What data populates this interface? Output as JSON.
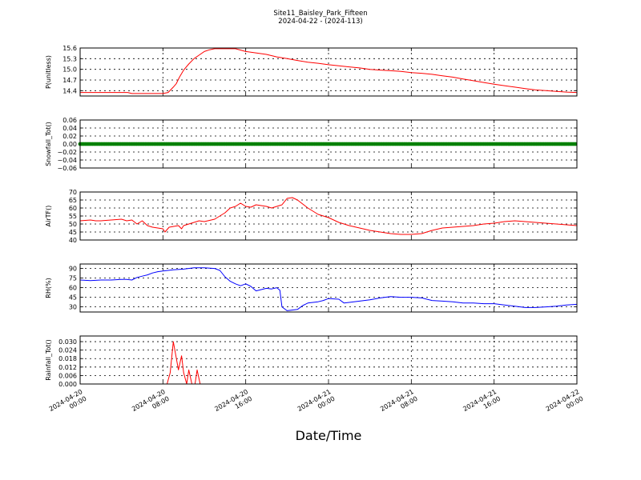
{
  "figure": {
    "title": "Site11_Baisley_Park_Fifteen",
    "subtitle": "2024-04-22 - (2024-113)",
    "xlabel": "Date/Time",
    "xtick_labels": [
      [
        "2024-04-20",
        "00:00"
      ],
      [
        "2024-04-20",
        "08:00"
      ],
      [
        "2024-04-20",
        "16:00"
      ],
      [
        "2024-04-21",
        "00:00"
      ],
      [
        "2024-04-21",
        "08:00"
      ],
      [
        "2024-04-21",
        "16:00"
      ],
      [
        "2024-04-22",
        "00:00"
      ]
    ]
  },
  "chart_data": [
    {
      "type": "line",
      "ylabel": "P(unitless)",
      "color": "#ff0000",
      "ylim": [
        14.25,
        15.6
      ],
      "yticks": [
        14.4,
        14.7,
        15.0,
        15.3,
        15.6
      ],
      "ytick_labels": [
        "14.4",
        "14.7",
        "15.0",
        "15.3",
        "15.6"
      ],
      "xlim_hours": [
        0,
        48
      ],
      "x_hours": [
        0,
        2,
        4,
        4.6,
        5,
        6,
        7,
        8,
        8.5,
        9,
        9.3,
        9.6,
        10,
        10.5,
        11,
        11.5,
        12,
        12.5,
        13,
        14,
        15,
        16,
        16.5,
        18,
        19,
        20,
        21,
        22,
        23,
        24,
        25,
        26,
        27,
        28,
        29,
        30,
        31,
        32,
        33,
        34,
        35,
        36,
        37,
        38,
        39,
        40,
        41,
        42,
        43,
        44,
        45,
        46,
        47,
        48
      ],
      "y": [
        14.35,
        14.35,
        14.35,
        14.35,
        14.32,
        14.32,
        14.32,
        14.32,
        14.35,
        14.5,
        14.6,
        14.78,
        14.98,
        15.15,
        15.3,
        15.4,
        15.5,
        15.55,
        15.58,
        15.58,
        15.58,
        15.5,
        15.48,
        15.42,
        15.35,
        15.3,
        15.25,
        15.2,
        15.17,
        15.13,
        15.1,
        15.07,
        15.04,
        15.0,
        14.98,
        14.96,
        14.94,
        14.91,
        14.89,
        14.86,
        14.82,
        14.78,
        14.73,
        14.68,
        14.63,
        14.58,
        14.54,
        14.5,
        14.46,
        14.42,
        14.4,
        14.38,
        14.36,
        14.35
      ]
    },
    {
      "type": "scatter",
      "ylabel": "Snowfall_Tot()",
      "color": "#008000",
      "ylim": [
        -0.06,
        0.06
      ],
      "yticks": [
        -0.06,
        -0.04,
        -0.02,
        0.0,
        0.02,
        0.04,
        0.06
      ],
      "ytick_labels": [
        "−0.06",
        "−0.04",
        "−0.02",
        "0.00",
        "0.02",
        "0.04",
        "0.06"
      ],
      "xlim_hours": [
        0,
        48
      ],
      "x_hours": [
        0,
        48
      ],
      "y": [
        0.0,
        0.0
      ]
    },
    {
      "type": "line",
      "ylabel": "AirTF()",
      "color": "#ff0000",
      "ylim": [
        40,
        70
      ],
      "yticks": [
        40,
        45,
        50,
        55,
        60,
        65,
        70
      ],
      "ytick_labels": [
        "40",
        "45",
        "50",
        "55",
        "60",
        "65",
        "70"
      ],
      "xlim_hours": [
        0,
        48
      ],
      "x_hours": [
        0,
        1,
        1.5,
        2,
        3,
        4,
        4.5,
        5,
        5.5,
        6,
        6.5,
        7,
        8,
        8.2,
        8.6,
        9.5,
        9.8,
        10,
        11,
        11.5,
        12,
        13,
        14,
        14.5,
        15,
        15.5,
        16,
        16.5,
        17,
        18,
        18.5,
        19,
        19.5,
        20,
        20.5,
        21,
        22,
        23,
        24,
        25,
        26,
        27,
        28,
        29,
        30,
        31,
        31.5,
        32,
        33,
        34,
        35,
        36,
        37,
        38,
        39,
        40,
        41,
        42,
        43,
        44,
        45,
        46,
        47,
        48
      ],
      "y": [
        52,
        52.5,
        52,
        52,
        52.5,
        53,
        52,
        52.5,
        50,
        52,
        49,
        48,
        47,
        45,
        48,
        49,
        47,
        49,
        51,
        52,
        51.5,
        53,
        57,
        60,
        61,
        63,
        61,
        60.5,
        62,
        61,
        60,
        61,
        62,
        66,
        66.5,
        65,
        60,
        56,
        54,
        51,
        49,
        47.5,
        46,
        45,
        44,
        43.5,
        43.5,
        43.5,
        44,
        46,
        47.5,
        48,
        48.5,
        49,
        50,
        50.5,
        51.5,
        52,
        51.5,
        51,
        50.5,
        50,
        49.5,
        49
      ]
    },
    {
      "type": "line",
      "ylabel": "RH(%)",
      "color": "#0000ff",
      "ylim": [
        22,
        97
      ],
      "yticks": [
        30,
        45,
        60,
        75,
        90
      ],
      "ytick_labels": [
        "30",
        "45",
        "60",
        "75",
        "90"
      ],
      "xlim_hours": [
        0,
        48
      ],
      "x_hours": [
        0,
        1,
        2,
        3,
        4,
        4.5,
        5,
        5.5,
        6,
        6.5,
        7,
        7.5,
        8,
        9,
        10,
        11,
        12,
        13,
        13.5,
        14,
        14.5,
        15,
        15.5,
        16,
        16.5,
        17,
        17.5,
        18,
        18.5,
        19,
        19.3,
        19.5,
        20,
        21,
        21.5,
        22,
        23,
        23.5,
        24,
        25,
        25.5,
        26,
        27,
        28,
        29,
        30,
        31,
        32,
        33,
        34,
        35,
        36,
        37,
        38,
        39,
        40,
        41,
        42,
        43,
        44,
        45,
        46,
        47,
        48
      ],
      "y": [
        72,
        71,
        72,
        72,
        73,
        73,
        72,
        76,
        78,
        80,
        83,
        85,
        86,
        88,
        89,
        91,
        91,
        90,
        87,
        77,
        70,
        66,
        63,
        66,
        62,
        55,
        57,
        59,
        58,
        60,
        56,
        30,
        24,
        26,
        32,
        36,
        38,
        40,
        43,
        42,
        36,
        37,
        39,
        41,
        44,
        46,
        45,
        45,
        44,
        40,
        39,
        38,
        36,
        36,
        35,
        35,
        33,
        31,
        29,
        29,
        30,
        31,
        33,
        34
      ]
    },
    {
      "type": "line",
      "ylabel": "Rainfall_Tot()",
      "color": "#ff0000",
      "ylim": [
        0,
        0.034
      ],
      "yticks": [
        0.0,
        0.006,
        0.012,
        0.018,
        0.024,
        0.03
      ],
      "ytick_labels": [
        "0.000",
        "0.006",
        "0.012",
        "0.018",
        "0.024",
        "0.030"
      ],
      "xlim_hours": [
        0,
        48
      ],
      "x_hours": [
        0,
        8,
        8.4,
        8.7,
        9.0,
        9.25,
        9.5,
        9.8,
        10.0,
        10.3,
        10.5,
        10.8,
        11.1,
        11.3,
        11.6,
        12.0,
        48
      ],
      "y": [
        0,
        0,
        0,
        0.008,
        0.03,
        0.02,
        0.01,
        0.02,
        0.008,
        0,
        0.01,
        0,
        0,
        0.01,
        0,
        0,
        0
      ]
    }
  ]
}
